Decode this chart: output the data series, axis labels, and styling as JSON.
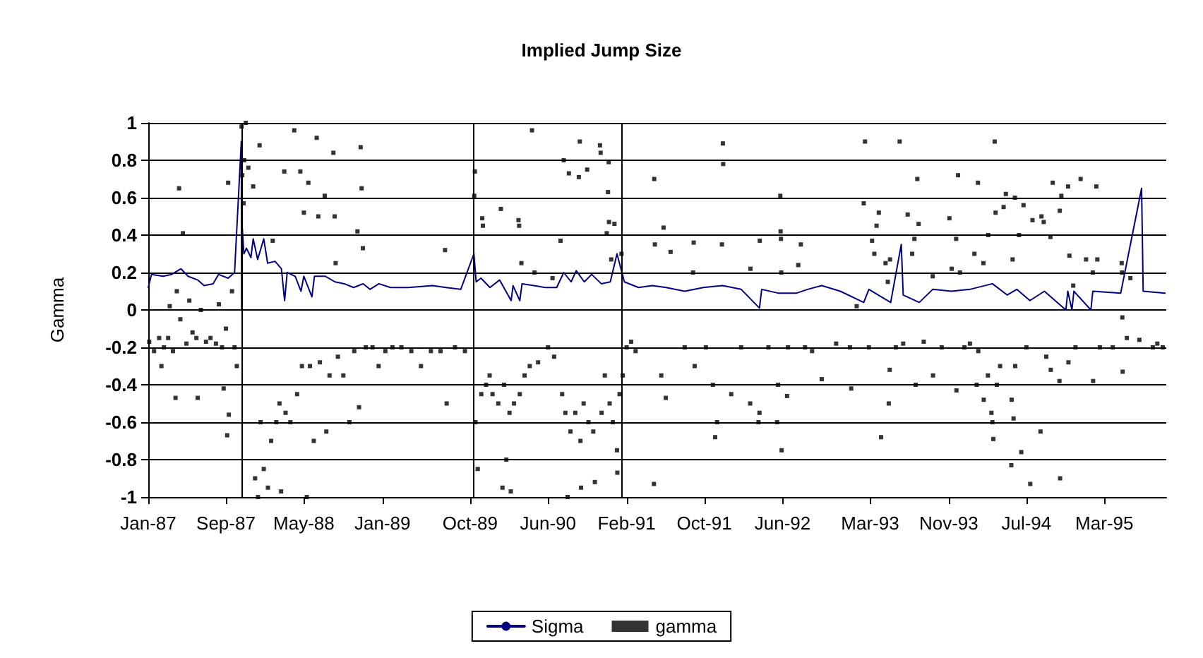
{
  "chart_data": {
    "type": "line",
    "title": "Implied Jump Size",
    "ylabel": "Gamma",
    "xlim": [
      "1987-01-02",
      "1995-09-10"
    ],
    "xticks": [
      {
        "value": "1987-01-02",
        "label": "Jan-87"
      },
      {
        "value": "1987-09-01",
        "label": "Sep-87"
      },
      {
        "value": "1988-05-01",
        "label": "May-88"
      },
      {
        "value": "1989-01-01",
        "label": "Jan-89"
      },
      {
        "value": "1989-10-01",
        "label": "Oct-89"
      },
      {
        "value": "1990-06-01",
        "label": "Jun-90"
      },
      {
        "value": "1991-02-01",
        "label": "Feb-91"
      },
      {
        "value": "1991-10-01",
        "label": "Oct-91"
      },
      {
        "value": "1992-06-01",
        "label": "Jun-92"
      },
      {
        "value": "1993-03-01",
        "label": "Mar-93"
      },
      {
        "value": "1993-11-01",
        "label": "Nov-93"
      },
      {
        "value": "1994-07-01",
        "label": "Jul-94"
      },
      {
        "value": "1995-03-01",
        "label": "Mar-95"
      }
    ],
    "ylim": [
      -1,
      1
    ],
    "yticks": [
      -1,
      -0.8,
      -0.6,
      -0.4,
      -0.2,
      0,
      0.2,
      0.4,
      0.6,
      0.8,
      1
    ],
    "grid": "y",
    "legend": "bottom",
    "ref_lines": [
      {
        "axis": "x",
        "value": "1987-10-19",
        "color": "#000000"
      },
      {
        "axis": "x",
        "value": "1989-10-13",
        "color": "#000000"
      },
      {
        "axis": "x",
        "value": "1991-01-17",
        "color": "#000000"
      }
    ],
    "series": [
      {
        "name": "Sigma",
        "marker": "none",
        "color": "#000080",
        "x": [
          "1987-01-02",
          "1987-01-12",
          "1987-02-17",
          "1987-03-16",
          "1987-04-14",
          "1987-05-06",
          "1987-06-05",
          "1987-06-25",
          "1987-07-23",
          "1987-08-09",
          "1987-09-08",
          "1987-09-28",
          "1987-10-19",
          "1987-10-20",
          "1987-10-22",
          "1987-10-27",
          "1987-11-04",
          "1987-11-18",
          "1987-11-25",
          "1987-12-09",
          "1987-12-28",
          "1988-01-09",
          "1988-02-01",
          "1988-02-21",
          "1988-03-02",
          "1988-03-10",
          "1988-04-04",
          "1988-04-22",
          "1988-05-01",
          "1988-05-26",
          "1988-06-03",
          "1988-07-07",
          "1988-08-06",
          "1988-09-04",
          "1988-10-03",
          "1988-11-02",
          "1988-11-23",
          "1988-12-21",
          "1989-01-26",
          "1989-03-23",
          "1989-06-06",
          "1989-07-18",
          "1989-09-02",
          "1989-10-13",
          "1989-10-20",
          "1989-11-04",
          "1989-12-02",
          "1990-01-01",
          "1990-02-06",
          "1990-02-12",
          "1990-03-05",
          "1990-03-12",
          "1990-04-18",
          "1990-05-23",
          "1990-06-28",
          "1990-07-20",
          "1990-08-12",
          "1990-08-28",
          "1990-09-22",
          "1990-10-15",
          "1990-11-14",
          "1990-12-12",
          "1991-01-02",
          "1991-01-25",
          "1991-03-10",
          "1991-04-22",
          "1991-06-04",
          "1991-08-01",
          "1991-09-28",
          "1991-11-27",
          "1992-01-24",
          "1992-03-21",
          "1992-03-28",
          "1992-05-18",
          "1992-07-15",
          "1992-08-18",
          "1992-10-01",
          "1992-11-28",
          "1993-02-09",
          "1993-02-25",
          "1993-05-04",
          "1993-06-06",
          "1993-06-12",
          "1993-08-01",
          "1993-09-12",
          "1993-11-09",
          "1994-01-06",
          "1994-03-17",
          "1994-05-02",
          "1994-06-01",
          "1994-07-12",
          "1994-08-26",
          "1994-11-01",
          "1994-11-07",
          "1994-11-20",
          "1994-11-26",
          "1995-01-18",
          "1995-01-24",
          "1995-04-21",
          "1995-06-25",
          "1995-06-30",
          "1995-09-06"
        ],
        "values": [
          0.12,
          0.19,
          0.18,
          0.19,
          0.22,
          0.18,
          0.16,
          0.13,
          0.14,
          0.19,
          0.17,
          0.2,
          0.9,
          0,
          0.44,
          0.3,
          0.33,
          0.28,
          0.38,
          0.27,
          0.38,
          0.25,
          0.26,
          0.22,
          0.05,
          0.2,
          0.18,
          0.1,
          0.18,
          0.07,
          0.18,
          0.18,
          0.15,
          0.14,
          0.12,
          0.14,
          0.11,
          0.14,
          0.12,
          0.12,
          0.13,
          0.12,
          0.11,
          0.3,
          0.15,
          0.17,
          0.12,
          0.16,
          0.05,
          0.13,
          0.05,
          0.14,
          0.13,
          0.12,
          0.12,
          0.2,
          0.15,
          0.21,
          0.15,
          0.19,
          0.14,
          0.15,
          0.3,
          0.15,
          0.12,
          0.13,
          0.12,
          0.1,
          0.12,
          0.13,
          0.11,
          0.01,
          0.11,
          0.09,
          0.09,
          0.11,
          0.13,
          0.1,
          0.04,
          0.11,
          0.04,
          0.35,
          0.08,
          0.04,
          0.11,
          0.1,
          0.11,
          0.14,
          0.08,
          0.11,
          0.05,
          0.1,
          0,
          0.1,
          0,
          0.1,
          0,
          0.1,
          0.09,
          0.65,
          0.1,
          0.09
        ]
      },
      {
        "name": "gamma",
        "type": "scatter",
        "marker": "square",
        "color": "#000000",
        "x": [
          "1987-01-05",
          "1987-01-20",
          "1987-02-05",
          "1987-02-12",
          "1987-02-20",
          "1987-03-05",
          "1987-03-10",
          "1987-03-20",
          "1987-03-28",
          "1987-04-01",
          "1987-04-08",
          "1987-04-12",
          "1987-04-20",
          "1987-05-01",
          "1987-05-10",
          "1987-05-20",
          "1987-06-01",
          "1987-06-05",
          "1987-06-15",
          "1987-07-01",
          "1987-07-15",
          "1987-08-01",
          "1987-08-10",
          "1987-08-20",
          "1987-08-25",
          "1987-09-01",
          "1987-09-05",
          "1987-09-08",
          "1987-09-10",
          "1987-09-20",
          "1987-09-28",
          "1987-10-05",
          "1987-10-20",
          "1987-10-22",
          "1987-10-26",
          "1987-10-28",
          "1987-11-02",
          "1987-11-10",
          "1987-11-25",
          "1987-12-01",
          "1987-12-10",
          "1987-12-15",
          "1987-12-18",
          "1987-12-28",
          "1988-01-10",
          "1988-01-20",
          "1988-01-25",
          "1988-02-05",
          "1988-02-15",
          "1988-02-20",
          "1988-03-01",
          "1988-03-05",
          "1988-03-20",
          "1988-04-01",
          "1988-04-10",
          "1988-04-20",
          "1988-04-25",
          "1988-05-01",
          "1988-05-10",
          "1988-05-15",
          "1988-05-20",
          "1988-06-01",
          "1988-06-10",
          "1988-06-15",
          "1988-06-20",
          "1988-07-05",
          "1988-07-10",
          "1988-07-20",
          "1988-08-01",
          "1988-08-05",
          "1988-08-08",
          "1988-08-15",
          "1988-09-01",
          "1988-09-20",
          "1988-10-05",
          "1988-10-15",
          "1988-10-20",
          "1988-10-25",
          "1988-10-28",
          "1988-11-01",
          "1988-11-10",
          "1988-12-01",
          "1988-12-20",
          "1989-01-10",
          "1989-02-01",
          "1989-03-01",
          "1989-04-01",
          "1989-05-01",
          "1989-06-01",
          "1989-07-01",
          "1989-07-15",
          "1989-07-20",
          "1989-08-15",
          "1989-09-15",
          "1989-10-16",
          "1989-10-14",
          "1989-10-18",
          "1989-10-25",
          "1989-11-05",
          "1989-11-08",
          "1989-11-10",
          "1989-11-20",
          "1989-12-01",
          "1989-12-10",
          "1989-12-28",
          "1990-01-05",
          "1990-01-10",
          "1990-01-15",
          "1990-01-22",
          "1990-02-01",
          "1990-02-05",
          "1990-02-15",
          "1990-03-01",
          "1990-03-03",
          "1990-03-05",
          "1990-03-10",
          "1990-03-20",
          "1990-04-05",
          "1990-04-12",
          "1990-04-20",
          "1990-05-01",
          "1990-06-01",
          "1990-06-15",
          "1990-06-20",
          "1990-07-10",
          "1990-07-15",
          "1990-07-20",
          "1990-07-25",
          "1990-08-01",
          "1990-08-05",
          "1990-08-10",
          "1990-08-25",
          "1990-09-05",
          "1990-09-08",
          "1990-09-10",
          "1990-09-12",
          "1990-09-20",
          "1990-10-01",
          "1990-10-05",
          "1990-10-20",
          "1990-10-25",
          "1990-11-10",
          "1990-11-12",
          "1990-11-15",
          "1990-11-25",
          "1990-12-01",
          "1990-12-05",
          "1990-12-07",
          "1990-12-08",
          "1990-12-10",
          "1990-12-15",
          "1990-12-20",
          "1990-12-25",
          "1991-01-02",
          "1991-01-03",
          "1991-01-10",
          "1991-01-16",
          "1991-01-20",
          "1991-02-01",
          "1991-02-15",
          "1991-03-01",
          "1991-04-27",
          "1991-04-28",
          "1991-04-30",
          "1991-05-20",
          "1991-05-27",
          "1991-06-03",
          "1991-06-18",
          "1991-08-01",
          "1991-08-27",
          "1991-08-29",
          "1991-09-01",
          "1991-10-06",
          "1991-10-28",
          "1991-11-04",
          "1991-11-10",
          "1991-11-25",
          "1991-11-28",
          "1991-11-29",
          "1991-12-24",
          "1992-01-24",
          "1992-02-21",
          "1992-02-22",
          "1992-03-18",
          "1992-03-21",
          "1992-03-22",
          "1992-04-18",
          "1992-05-15",
          "1992-05-18",
          "1992-05-25",
          "1992-05-26",
          "1992-05-27",
          "1992-05-28",
          "1992-05-29",
          "1992-06-15",
          "1992-06-18",
          "1992-07-20",
          "1992-07-28",
          "1992-08-10",
          "1992-09-01",
          "1992-10-01",
          "1992-11-15",
          "1992-12-28",
          "1993-01-01",
          "1993-01-18",
          "1993-02-09",
          "1993-02-13",
          "1993-02-25",
          "1993-03-07",
          "1993-03-14",
          "1993-03-21",
          "1993-03-28",
          "1993-04-04",
          "1993-04-18",
          "1993-04-25",
          "1993-04-28",
          "1993-05-01",
          "1993-05-02",
          "1993-05-20",
          "1993-06-01",
          "1993-06-12",
          "1993-06-26",
          "1993-07-10",
          "1993-07-17",
          "1993-07-21",
          "1993-07-26",
          "1993-07-30",
          "1993-08-15",
          "1993-09-12",
          "1993-09-13",
          "1993-10-10",
          "1993-11-03",
          "1993-11-10",
          "1993-11-24",
          "1993-11-25",
          "1993-11-30",
          "1993-12-06",
          "1993-12-20",
          "1994-01-06",
          "1994-01-20",
          "1994-01-27",
          "1994-01-31",
          "1994-02-01",
          "1994-02-17",
          "1994-02-18",
          "1994-03-03",
          "1994-03-04",
          "1994-03-14",
          "1994-03-17",
          "1994-03-20",
          "1994-03-24",
          "1994-03-27",
          "1994-03-31",
          "1994-04-10",
          "1994-04-21",
          "1994-04-28",
          "1994-05-15",
          "1994-05-16",
          "1994-05-19",
          "1994-05-22",
          "1994-05-26",
          "1994-05-27",
          "1994-06-08",
          "1994-06-15",
          "1994-06-22",
          "1994-07-01",
          "1994-07-13",
          "1994-07-20",
          "1994-08-14",
          "1994-08-17",
          "1994-08-24",
          "1994-09-01",
          "1994-09-14",
          "1994-09-15",
          "1994-09-21",
          "1994-10-12",
          "1994-10-13",
          "1994-10-14",
          "1994-10-18",
          "1994-11-08",
          "1994-11-09",
          "1994-11-12",
          "1994-11-24",
          "1994-12-01",
          "1994-12-17",
          "1995-01-03",
          "1995-01-24",
          "1995-01-25",
          "1995-02-04",
          "1995-02-07",
          "1995-02-15",
          "1995-03-27",
          "1995-04-24",
          "1995-04-25",
          "1995-04-26",
          "1995-04-27",
          "1995-05-10",
          "1995-05-21",
          "1995-06-18",
          "1995-07-30",
          "1995-08-13",
          "1995-08-30"
        ],
        "values": [
          -0.17,
          -0.22,
          -0.15,
          -0.3,
          -0.2,
          -0.15,
          0.02,
          -0.22,
          -0.47,
          0.1,
          0.65,
          -0.05,
          0.41,
          -0.18,
          0.05,
          -0.12,
          -0.15,
          -0.47,
          0,
          -0.17,
          -0.15,
          -0.18,
          0.03,
          -0.2,
          -0.42,
          -0.1,
          -0.67,
          0.68,
          -0.56,
          0.1,
          -0.2,
          -0.3,
          0.98,
          0.72,
          0.57,
          0.8,
          1,
          0.76,
          0.66,
          -0.9,
          -1,
          0.88,
          -0.6,
          -0.85,
          -0.95,
          -0.7,
          0.37,
          -0.6,
          -0.5,
          -0.97,
          0.74,
          -0.55,
          -0.6,
          0.96,
          -0.45,
          0.74,
          -0.3,
          0.52,
          -1,
          0.68,
          -0.3,
          -0.7,
          0.92,
          0.5,
          -0.28,
          0.61,
          -0.65,
          -0.35,
          0.84,
          0.5,
          0.25,
          -0.25,
          -0.35,
          -0.6,
          -0.22,
          0.42,
          -0.52,
          0.87,
          0.65,
          0.33,
          -0.2,
          -0.2,
          -0.3,
          -0.22,
          -0.2,
          -0.2,
          -0.22,
          -0.3,
          -0.22,
          -0.22,
          0.32,
          -0.5,
          -0.2,
          -0.22,
          0.74,
          0.61,
          -0.6,
          -0.85,
          -0.45,
          0.49,
          0.45,
          -0.4,
          -0.35,
          -0.45,
          -0.5,
          0.54,
          -0.95,
          -0.4,
          -0.8,
          -0.55,
          -0.97,
          -0.5,
          0.48,
          0.45,
          -0.45,
          0.25,
          -0.35,
          -0.3,
          0.96,
          0.2,
          -0.28,
          -0.2,
          0.17,
          -0.25,
          0.37,
          -0.45,
          0.8,
          -0.55,
          -1,
          0.73,
          -0.65,
          -0.55,
          0.71,
          0.9,
          -0.7,
          -0.95,
          -0.5,
          0.75,
          -0.6,
          -0.65,
          -0.92,
          0.88,
          0.84,
          -0.55,
          -0.35,
          0.41,
          0.63,
          0.79,
          0.47,
          -0.5,
          0.27,
          -0.6,
          0.46,
          -0.75,
          -0.87,
          -0.45,
          0.3,
          -0.35,
          -0.2,
          -0.17,
          -0.22,
          -0.93,
          0.7,
          0.35,
          -0.35,
          0.44,
          -0.47,
          0.31,
          -0.2,
          0.2,
          0.36,
          -0.3,
          -0.2,
          -0.4,
          -0.68,
          -0.6,
          0.35,
          0.89,
          0.78,
          -0.45,
          -0.2,
          -0.5,
          0.22,
          -0.6,
          -0.55,
          0.37,
          -0.2,
          -0.6,
          -0.4,
          0.61,
          0.42,
          0.38,
          0.2,
          -0.75,
          -0.46,
          -0.2,
          0.24,
          0.35,
          -0.2,
          -0.22,
          -0.37,
          -0.18,
          -0.2,
          -0.42,
          0.02,
          0.57,
          0.9,
          -0.2,
          0.37,
          0.3,
          0.45,
          0.52,
          -0.68,
          0.25,
          0.15,
          -0.5,
          -0.32,
          0.27,
          -0.2,
          0.9,
          -0.18,
          0.51,
          0.3,
          0.38,
          -0.4,
          0.7,
          0.46,
          -0.17,
          0.18,
          -0.35,
          -0.2,
          0.49,
          0.22,
          0.38,
          -0.43,
          0.72,
          0.2,
          -0.2,
          -0.18,
          0.3,
          -0.4,
          0.68,
          -0.22,
          0.25,
          -0.48,
          -0.35,
          0.4,
          -0.55,
          -0.6,
          -0.69,
          0.9,
          0.52,
          -0.4,
          -0.3,
          0.55,
          0.62,
          -0.83,
          -0.48,
          0.27,
          -0.58,
          0.6,
          -0.3,
          0.4,
          -0.76,
          0.56,
          -0.2,
          -0.93,
          0.48,
          -0.65,
          0.5,
          0.47,
          -0.25,
          0.39,
          -0.32,
          0.68,
          -0.38,
          0.53,
          -0.9,
          0.61,
          0.66,
          -0.28,
          0.29,
          0.13,
          -0.2,
          0.7,
          0.27,
          0.2,
          -0.38,
          0.66,
          0.27,
          -0.2,
          -0.2,
          0.25,
          0.2,
          -0.04,
          -0.33,
          -0.15,
          0.17,
          -0.16,
          -0.2,
          -0.18,
          -0.2
        ]
      }
    ]
  }
}
